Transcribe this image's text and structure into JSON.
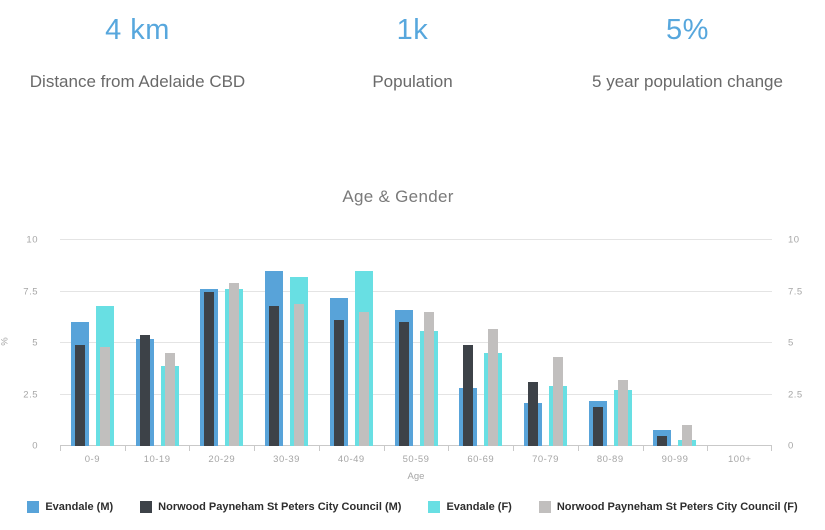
{
  "stats": [
    {
      "value": "4 km",
      "label": "Distance from Adelaide CBD"
    },
    {
      "value": "1k",
      "label": "Population"
    },
    {
      "value": "5%",
      "label": "5 year population change"
    }
  ],
  "chart_data": {
    "type": "bar",
    "title": "Age & Gender",
    "xlabel": "Age",
    "ylabel": "%",
    "ylim": [
      0,
      10
    ],
    "yticks": [
      0,
      2.5,
      5,
      7.5,
      10
    ],
    "grid": true,
    "legend_position": "bottom",
    "bar_style": "overlapping pairs: wide Evandale bar behind, narrow Council bar in front",
    "categories": [
      "0-9",
      "10-19",
      "20-29",
      "30-39",
      "40-49",
      "50-59",
      "60-69",
      "70-79",
      "80-89",
      "90-99",
      "100+"
    ],
    "series": [
      {
        "id": "evandale-m",
        "name": "Evandale (M)",
        "color": "#58a3d9",
        "role": "base",
        "pair": 0,
        "values": [
          6.0,
          5.2,
          7.6,
          8.5,
          7.2,
          6.6,
          2.8,
          2.1,
          2.2,
          0.8,
          0
        ]
      },
      {
        "id": "norwood-m",
        "name": "Norwood Payneham St Peters City Council (M)",
        "color": "#3d4248",
        "role": "overlay",
        "pair": 0,
        "values": [
          4.9,
          5.4,
          7.5,
          6.8,
          6.1,
          6.0,
          4.9,
          3.1,
          1.9,
          0.5,
          0
        ]
      },
      {
        "id": "evandale-f",
        "name": "Evandale (F)",
        "color": "#68dfe3",
        "role": "base",
        "pair": 1,
        "values": [
          6.8,
          3.9,
          7.6,
          8.2,
          8.5,
          5.6,
          4.5,
          2.9,
          2.7,
          0.3,
          0
        ]
      },
      {
        "id": "norwood-f",
        "name": "Norwood Payneham St Peters City Council (F)",
        "color": "#c1bfbe",
        "role": "overlay",
        "pair": 1,
        "values": [
          4.8,
          4.5,
          7.9,
          6.9,
          6.5,
          6.5,
          5.7,
          4.3,
          3.2,
          1.0,
          0
        ]
      }
    ]
  },
  "colors": {
    "accent_blue": "#57a7dd",
    "stat_label_gray": "#696969",
    "title_gray": "#7a7a7a",
    "axis_text": "#a6a6a6",
    "gridline": "#e4e4e4",
    "axis_line": "#c9c9c9"
  }
}
